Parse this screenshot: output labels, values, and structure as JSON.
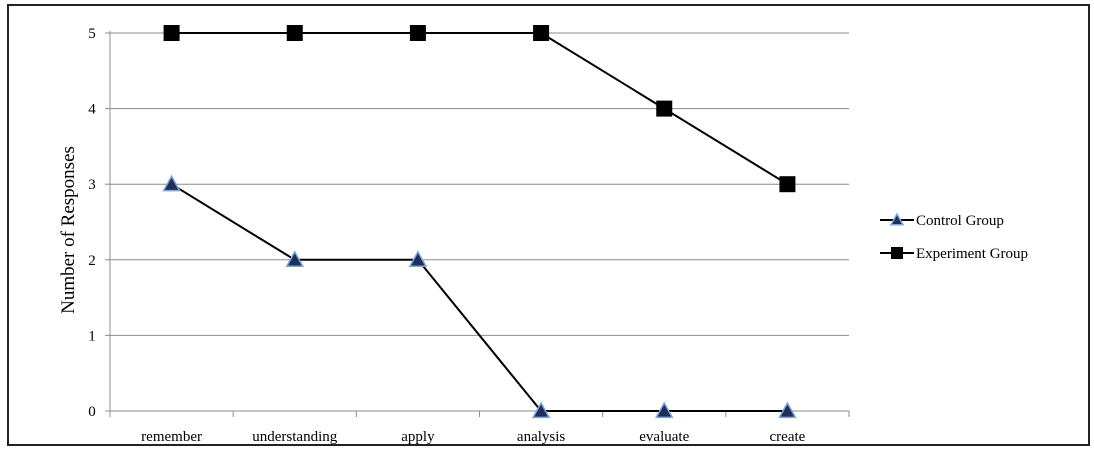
{
  "chart_data": {
    "type": "line",
    "title": "",
    "xlabel": "",
    "ylabel": "Number of Responses",
    "categories": [
      "remember",
      "understanding",
      "apply",
      "analysis",
      "evaluate",
      "create"
    ],
    "ylim": [
      0,
      5
    ],
    "yticks": [
      "0",
      "1",
      "2",
      "3",
      "4",
      "5"
    ],
    "grid": true,
    "legend_position": "right",
    "series": [
      {
        "name": "Control Group",
        "values": [
          3,
          2,
          2,
          0,
          0,
          0
        ],
        "marker": "triangle",
        "marker_color": "#1f2f5c",
        "marker_edge": "#7ea6d8",
        "line_color": "#000000"
      },
      {
        "name": "Experiment Group",
        "values": [
          5,
          5,
          5,
          5,
          4,
          3
        ],
        "marker": "square",
        "marker_color": "#000000",
        "line_color": "#000000"
      }
    ]
  }
}
